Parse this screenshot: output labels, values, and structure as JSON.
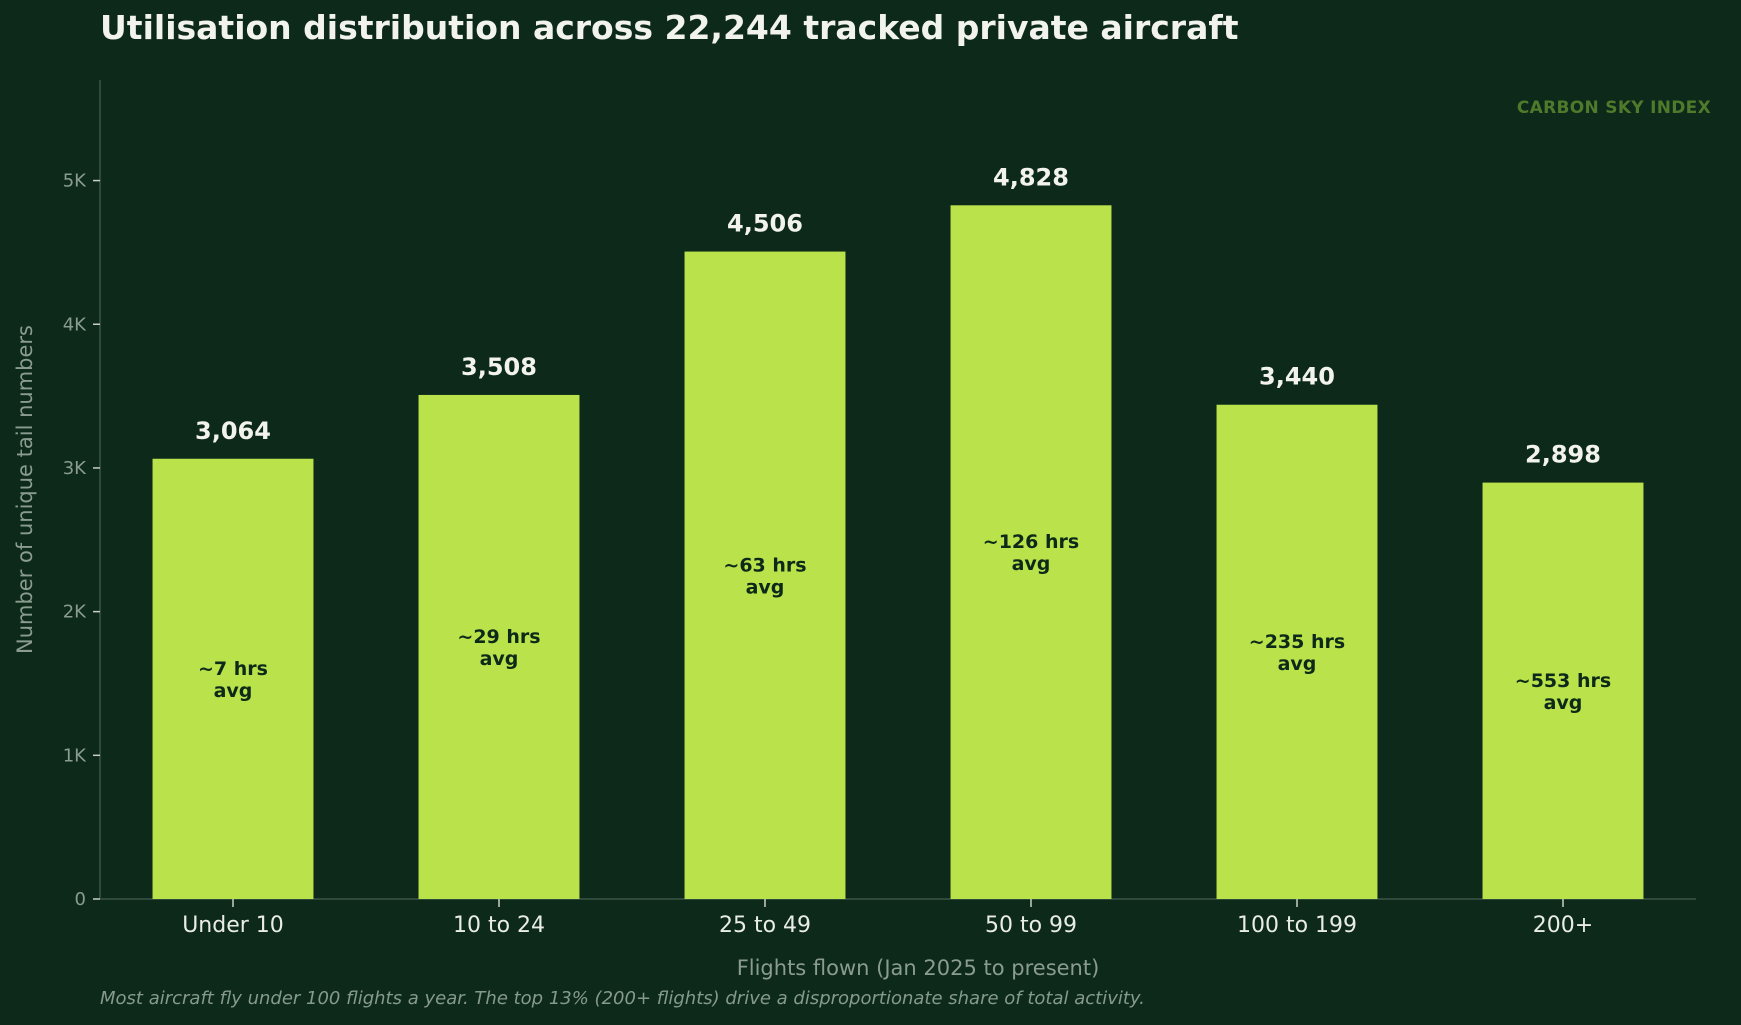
{
  "title": "Utilisation distribution across 22,244 tracked private aircraft",
  "brand": "CARBON SKY INDEX",
  "caption": "Most aircraft fly under 100 flights a year. The top 13% (200+ flights) drive a disproportionate share of total activity.",
  "colors": {
    "background": "#0d291a",
    "bar": "#bae24b",
    "text": "#f1f3ec",
    "muted": "#8a9c8e",
    "brand": "#4f7a2c"
  },
  "chart_data": {
    "type": "bar",
    "categories": [
      "Under 10",
      "10 to 24",
      "25 to 49",
      "50 to 99",
      "100 to 199",
      "200+"
    ],
    "values": [
      3064,
      3508,
      4506,
      4828,
      3440,
      2898
    ],
    "value_labels": [
      "3,064",
      "3,508",
      "4,506",
      "4,828",
      "3,440",
      "2,898"
    ],
    "annotations": [
      [
        "~7 hrs",
        "avg"
      ],
      [
        "~29 hrs",
        "avg"
      ],
      [
        "~63 hrs",
        "avg"
      ],
      [
        "~126 hrs",
        "avg"
      ],
      [
        "~235 hrs",
        "avg"
      ],
      [
        "~553 hrs",
        "avg"
      ]
    ],
    "xlabel": "Flights flown (Jan 2025 to present)",
    "ylabel": "Number of unique tail numbers",
    "ylim": [
      0,
      5700
    ],
    "yticks": [
      0,
      1000,
      2000,
      3000,
      4000,
      5000
    ],
    "ytick_labels": [
      "0",
      "1K",
      "2K",
      "3K",
      "4K",
      "5K"
    ],
    "grid": false
  }
}
